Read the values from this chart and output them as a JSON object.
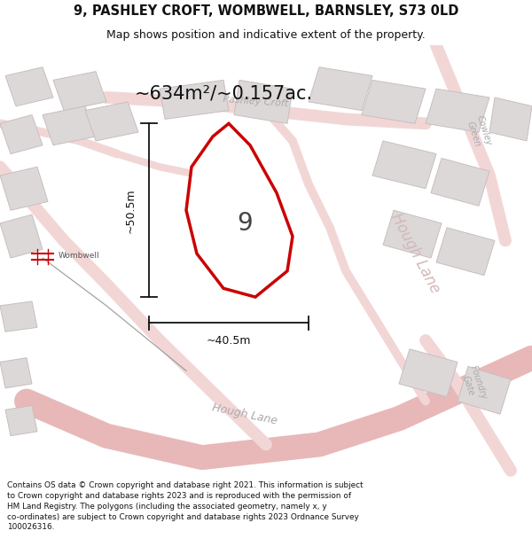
{
  "title_line1": "9, PASHLEY CROFT, WOMBWELL, BARNSLEY, S73 0LD",
  "title_line2": "Map shows position and indicative extent of the property.",
  "area_label": "~634m²/~0.157ac.",
  "plot_number": "9",
  "dim_height": "~50.5m",
  "dim_width": "~40.5m",
  "footer_text": "Contains OS data © Crown copyright and database right 2021. This information is subject to Crown copyright and database rights 2023 and is reproduced with the permission of HM Land Registry. The polygons (including the associated geometry, namely x, y co-ordinates) are subject to Crown copyright and database rights 2023 Ordnance Survey 100026316.",
  "bg_color": "#ffffff",
  "map_bg": "#f7f4f4",
  "road_fill": "#f2d6d6",
  "road_edge": "#e8b8b8",
  "building_fill": "#ddd8d8",
  "building_edge": "#c8bebe",
  "highlight_color": "#cc0000",
  "title_color": "#111111",
  "footer_color": "#111111",
  "label_color": "#aaaaaa",
  "wombwell_color": "#cc0000",
  "railway_color": "#888888",
  "dim_color": "#111111"
}
